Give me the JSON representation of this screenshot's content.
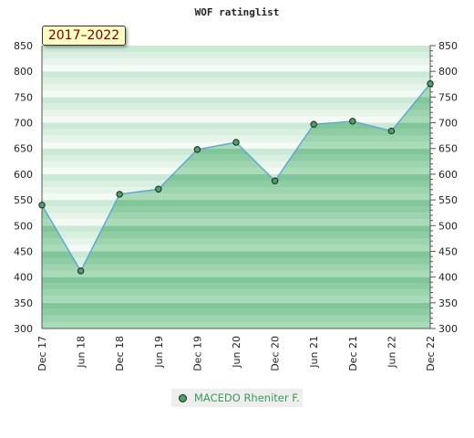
{
  "chart_data": {
    "type": "area",
    "title": "WOF ratinglist",
    "period": "2017–2022",
    "x_categories": [
      "Dec 17",
      "Jun 18",
      "Dec 18",
      "Jun 19",
      "Dec 19",
      "Jun 20",
      "Dec 20",
      "Jun 21",
      "Dec 21",
      "Jun 22",
      "Dec 22"
    ],
    "y_ticks": [
      300,
      350,
      400,
      450,
      500,
      550,
      600,
      650,
      700,
      750,
      800,
      850
    ],
    "ylim": [
      300,
      850
    ],
    "y_axis": "both-sides",
    "grid": "horizontal-bands",
    "legend_position": "bottom-center",
    "series": [
      {
        "name": "MACEDO Rheniter F.",
        "values": [
          540,
          412,
          561,
          571,
          648,
          662,
          587,
          697,
          703,
          684,
          776
        ]
      }
    ],
    "colors": {
      "line": "#5b9fd8",
      "marker": "#4aa264",
      "band_light": "#e2f2e6",
      "band_dark": "#b9e2c6",
      "fill": "#7fc59a"
    }
  }
}
